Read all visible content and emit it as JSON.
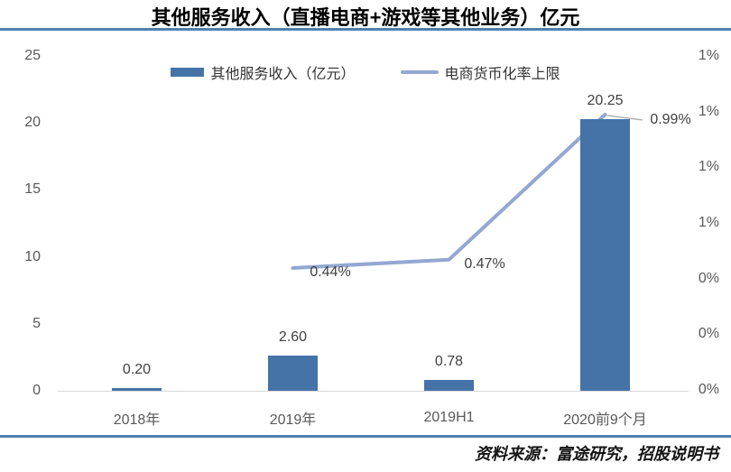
{
  "source": "资料来源：富途研究，招股说明书",
  "colors": {
    "bar": "#4573A7",
    "line": "#93A7D1",
    "top_rule": "#4E81B0",
    "bottom_rule": "#4E81B0",
    "axis_text": "#595959",
    "value_text": "#404040",
    "axis_line": "#D9D9D9",
    "callout_line": "#A6A6A6"
  },
  "chart_data": {
    "type": "bar",
    "title": "其他服务收入（直播电商+游戏等其他业务）亿元",
    "categories": [
      "2018年",
      "2019年",
      "2019H1",
      "2020前9个月"
    ],
    "series": [
      {
        "name": "其他服务收入（亿元）",
        "kind": "bar",
        "axis": "left",
        "values": [
          0.2,
          2.6,
          0.78,
          20.25
        ],
        "labels": [
          "0.20",
          "2.60",
          "0.78",
          "20.25"
        ],
        "color": "#4573A7"
      },
      {
        "name": "电商货币化率上限",
        "kind": "line",
        "axis": "right",
        "values": [
          null,
          0.0044,
          0.0047,
          0.0099
        ],
        "labels": [
          "0.44%",
          "0.47%",
          "0.99%"
        ],
        "color": "#93A7D1"
      }
    ],
    "left_axis": {
      "min": 0,
      "max": 25,
      "ticks": [
        "25",
        "20",
        "15",
        "10",
        "5",
        "0"
      ]
    },
    "right_axis": {
      "min": 0,
      "max": 0.012,
      "ticks": [
        "1%",
        "1%",
        "1%",
        "1%",
        "0%",
        "0%",
        "0%"
      ]
    },
    "legend_position": "top",
    "grid": false
  }
}
